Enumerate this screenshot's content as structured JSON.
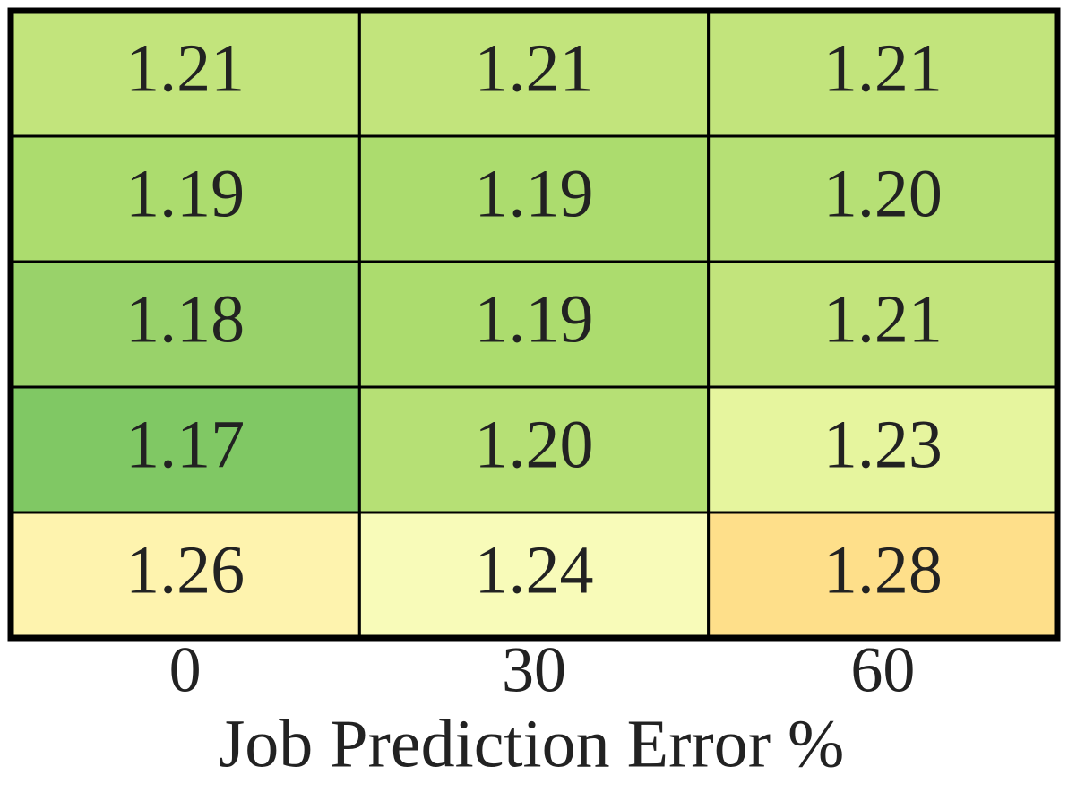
{
  "chart_data": {
    "type": "heatmap",
    "categories": [
      "0",
      "30",
      "60"
    ],
    "xlabel": "Job Prediction Error %",
    "values": [
      [
        1.21,
        1.21,
        1.21
      ],
      [
        1.19,
        1.19,
        1.2
      ],
      [
        1.18,
        1.19,
        1.21
      ],
      [
        1.17,
        1.2,
        1.23
      ],
      [
        1.26,
        1.24,
        1.28
      ]
    ],
    "value_labels": [
      [
        "1.21",
        "1.21",
        "1.21"
      ],
      [
        "1.19",
        "1.19",
        "1.20"
      ],
      [
        "1.18",
        "1.19",
        "1.21"
      ],
      [
        "1.17",
        "1.20",
        "1.23"
      ],
      [
        "1.26",
        "1.24",
        "1.28"
      ]
    ],
    "colors": [
      [
        "#c2e47c",
        "#c2e47c",
        "#c2e47c"
      ],
      [
        "#acdc6e",
        "#acdc6e",
        "#b6e075"
      ],
      [
        "#99d26a",
        "#acdc6e",
        "#c2e47c"
      ],
      [
        "#80c864",
        "#b6e075",
        "#e6f59e"
      ],
      [
        "#fef3ae",
        "#f8fbb9",
        "#fedf8a"
      ]
    ]
  }
}
